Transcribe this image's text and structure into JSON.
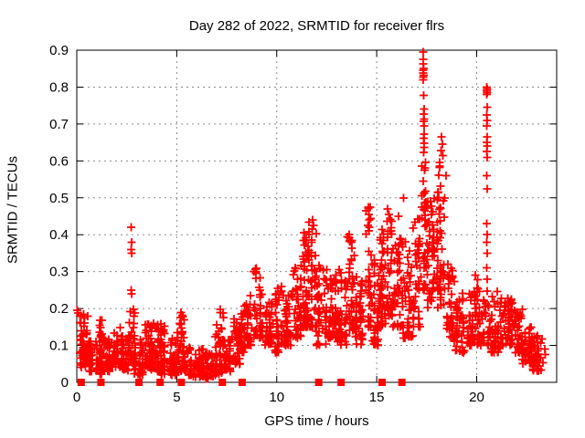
{
  "chart_data": {
    "type": "scatter",
    "title": "Day 282 of 2022, SRMTID for receiver flrs",
    "xlabel": "GPS time / hours",
    "ylabel": "SRMTID / TECUs",
    "xlim": [
      0,
      24
    ],
    "ylim": [
      0,
      0.9
    ],
    "xticks": [
      0,
      5,
      10,
      15,
      20
    ],
    "yticks": [
      0,
      0.1,
      0.2,
      0.3,
      0.4,
      0.5,
      0.6,
      0.7,
      0.8,
      0.9
    ],
    "grid": true,
    "legend": "none",
    "marker": "plus",
    "zero_marker": "filled-square",
    "colors": {
      "points": "#ff0000",
      "grid": "#8a8a8a",
      "frame": "#000000",
      "background": "#ffffff"
    },
    "envelope_bins": [
      [
        0.1,
        0.6,
        0.04,
        0.19,
        55
      ],
      [
        0.6,
        1.0,
        0.03,
        0.12,
        40
      ],
      [
        1.0,
        1.3,
        0.02,
        0.17,
        38
      ],
      [
        1.3,
        1.8,
        0.03,
        0.12,
        40
      ],
      [
        1.8,
        2.3,
        0.04,
        0.15,
        45
      ],
      [
        2.3,
        2.6,
        0.03,
        0.12,
        30
      ],
      [
        2.6,
        2.9,
        0.05,
        0.2,
        32
      ],
      [
        2.9,
        3.3,
        0.02,
        0.12,
        36
      ],
      [
        3.3,
        3.7,
        0.04,
        0.16,
        40
      ],
      [
        3.7,
        4.1,
        0.03,
        0.17,
        42
      ],
      [
        4.1,
        4.5,
        0.02,
        0.16,
        40
      ],
      [
        4.5,
        5.0,
        0.02,
        0.12,
        42
      ],
      [
        5.0,
        5.35,
        0.03,
        0.19,
        35
      ],
      [
        5.35,
        5.8,
        0.02,
        0.1,
        36
      ],
      [
        5.8,
        6.4,
        0.015,
        0.09,
        42
      ],
      [
        6.4,
        6.9,
        0.01,
        0.08,
        36
      ],
      [
        6.9,
        7.35,
        0.02,
        0.2,
        42
      ],
      [
        7.35,
        7.8,
        0.03,
        0.13,
        36
      ],
      [
        7.8,
        8.2,
        0.05,
        0.175,
        40
      ],
      [
        8.2,
        8.45,
        0.08,
        0.21,
        26
      ],
      [
        8.45,
        8.8,
        0.1,
        0.24,
        30
      ],
      [
        8.8,
        9.3,
        0.12,
        0.315,
        45
      ],
      [
        9.3,
        9.8,
        0.1,
        0.22,
        40
      ],
      [
        9.8,
        10.4,
        0.08,
        0.26,
        46
      ],
      [
        10.4,
        10.8,
        0.1,
        0.24,
        36
      ],
      [
        10.8,
        11.2,
        0.12,
        0.31,
        40
      ],
      [
        11.2,
        11.55,
        0.15,
        0.4,
        40
      ],
      [
        11.55,
        12.0,
        0.15,
        0.44,
        50
      ],
      [
        12.0,
        12.5,
        0.1,
        0.32,
        46
      ],
      [
        12.5,
        13.0,
        0.12,
        0.3,
        45
      ],
      [
        13.0,
        13.5,
        0.1,
        0.33,
        45
      ],
      [
        13.5,
        13.9,
        0.14,
        0.4,
        40
      ],
      [
        13.9,
        14.4,
        0.1,
        0.3,
        42
      ],
      [
        14.4,
        14.75,
        0.15,
        0.475,
        36
      ],
      [
        14.75,
        15.1,
        0.1,
        0.35,
        36
      ],
      [
        15.1,
        15.5,
        0.15,
        0.42,
        46
      ],
      [
        15.5,
        15.8,
        0.18,
        0.45,
        40
      ],
      [
        15.8,
        16.3,
        0.15,
        0.42,
        46
      ],
      [
        16.3,
        16.8,
        0.12,
        0.4,
        40
      ],
      [
        16.8,
        17.25,
        0.15,
        0.45,
        40
      ],
      [
        17.28,
        17.45,
        0.25,
        0.62,
        30
      ],
      [
        17.45,
        17.8,
        0.2,
        0.5,
        36
      ],
      [
        17.8,
        18.05,
        0.25,
        0.52,
        35
      ],
      [
        18.05,
        18.45,
        0.2,
        0.6,
        45
      ],
      [
        18.45,
        18.9,
        0.12,
        0.32,
        46
      ],
      [
        18.9,
        19.4,
        0.08,
        0.25,
        45
      ],
      [
        19.4,
        19.9,
        0.1,
        0.25,
        36
      ],
      [
        19.9,
        20.3,
        0.1,
        0.3,
        36
      ],
      [
        20.3,
        20.6,
        0.1,
        0.25,
        22
      ],
      [
        20.6,
        21.2,
        0.08,
        0.25,
        52
      ],
      [
        21.2,
        21.8,
        0.1,
        0.235,
        52
      ],
      [
        21.8,
        22.3,
        0.08,
        0.2,
        46
      ],
      [
        22.3,
        22.8,
        0.05,
        0.15,
        46
      ],
      [
        22.8,
        23.35,
        0.03,
        0.13,
        40
      ]
    ],
    "outlier_points": [
      [
        0.03,
        0.195
      ],
      [
        0.06,
        0.188
      ],
      [
        2.72,
        0.42
      ],
      [
        2.74,
        0.38
      ],
      [
        2.73,
        0.36
      ],
      [
        2.75,
        0.35
      ],
      [
        2.72,
        0.25
      ],
      [
        2.74,
        0.24
      ],
      [
        11.35,
        0.405
      ],
      [
        11.42,
        0.385
      ],
      [
        11.8,
        0.44
      ],
      [
        11.85,
        0.425
      ],
      [
        11.78,
        0.415
      ],
      [
        13.62,
        0.4
      ],
      [
        13.65,
        0.385
      ],
      [
        14.58,
        0.475
      ],
      [
        14.6,
        0.455
      ],
      [
        14.62,
        0.44
      ],
      [
        14.56,
        0.425
      ],
      [
        14.6,
        0.41
      ],
      [
        15.55,
        0.47
      ],
      [
        15.6,
        0.455
      ],
      [
        16.1,
        0.45
      ],
      [
        16.35,
        0.5
      ],
      [
        17.32,
        0.895
      ],
      [
        17.33,
        0.875
      ],
      [
        17.32,
        0.863
      ],
      [
        17.34,
        0.85
      ],
      [
        17.33,
        0.845
      ],
      [
        17.32,
        0.838
      ],
      [
        17.34,
        0.832
      ],
      [
        17.33,
        0.827
      ],
      [
        17.32,
        0.82
      ],
      [
        17.35,
        0.777
      ],
      [
        17.36,
        0.74
      ],
      [
        17.35,
        0.727
      ],
      [
        17.36,
        0.713
      ],
      [
        17.35,
        0.707
      ],
      [
        17.37,
        0.695
      ],
      [
        17.36,
        0.673
      ],
      [
        17.35,
        0.662
      ],
      [
        17.36,
        0.648
      ],
      [
        17.37,
        0.637
      ],
      [
        17.35,
        0.623
      ],
      [
        18.25,
        0.665
      ],
      [
        18.28,
        0.645
      ],
      [
        18.22,
        0.628
      ],
      [
        18.3,
        0.615
      ],
      [
        20.5,
        0.8
      ],
      [
        20.52,
        0.795
      ],
      [
        20.51,
        0.79
      ],
      [
        20.53,
        0.785
      ],
      [
        20.5,
        0.78
      ],
      [
        20.52,
        0.745
      ],
      [
        20.51,
        0.725
      ],
      [
        20.52,
        0.71
      ],
      [
        20.5,
        0.695
      ],
      [
        20.53,
        0.665
      ],
      [
        20.51,
        0.65
      ],
      [
        20.52,
        0.64
      ],
      [
        20.5,
        0.625
      ],
      [
        20.52,
        0.61
      ],
      [
        20.51,
        0.56
      ],
      [
        20.52,
        0.524
      ],
      [
        20.5,
        0.43
      ],
      [
        20.52,
        0.4
      ],
      [
        20.51,
        0.38
      ],
      [
        20.53,
        0.35
      ],
      [
        20.5,
        0.31
      ],
      [
        20.52,
        0.28
      ],
      [
        23.4,
        0.09
      ],
      [
        23.42,
        0.075
      ]
    ],
    "zero_value_hours": [
      0.22,
      1.21,
      3.11,
      4.17,
      5.23,
      7.28,
      8.27,
      12.1,
      13.22,
      15.27,
      16.26
    ]
  }
}
